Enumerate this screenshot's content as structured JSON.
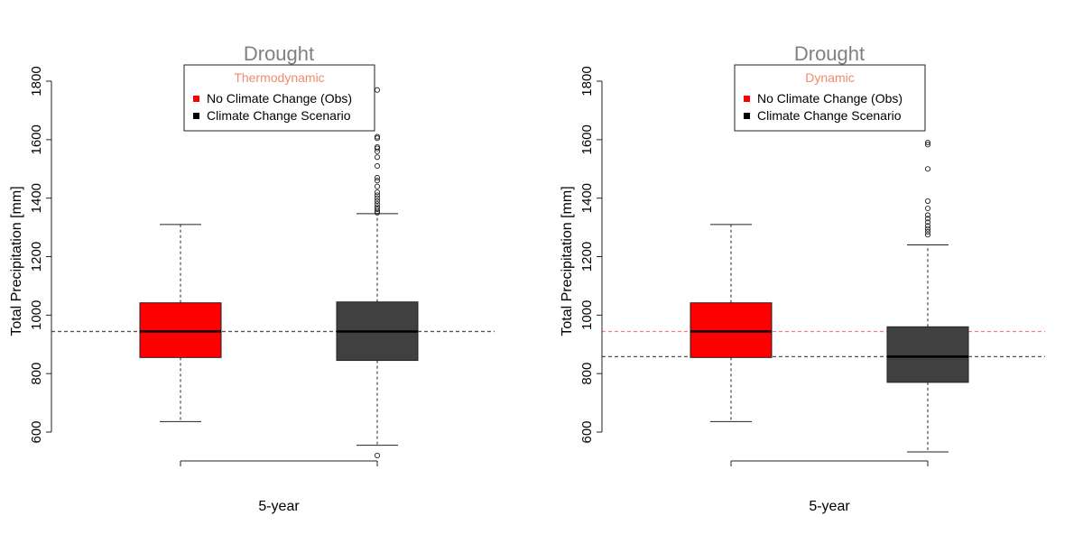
{
  "chart_data": [
    {
      "type": "box",
      "title": "Drought",
      "legend_title": "Thermodynamic",
      "legend_title_color": "#f08a6c",
      "legend_position": "top-center",
      "xlabel": "5-year",
      "ylabel": "Total Precipitation [mm]",
      "ylim": [
        580,
        1820
      ],
      "yticks": [
        600,
        800,
        1000,
        1200,
        1400,
        1600,
        1800
      ],
      "grid": false,
      "series": [
        {
          "name": "No Climate Change (Obs)",
          "color": "#ff0000",
          "min": 636,
          "q1": 855,
          "median": 944,
          "q3": 1042,
          "max": 1310,
          "outliers": []
        },
        {
          "name": "Climate Change Scenario",
          "color": "#404040",
          "min": 555,
          "q1": 845,
          "median": 944,
          "q3": 1045,
          "max": 1347,
          "outliers": [
            520,
            1350,
            1355,
            1362,
            1370,
            1380,
            1390,
            1400,
            1410,
            1420,
            1440,
            1460,
            1470,
            1510,
            1540,
            1560,
            1570,
            1575,
            1605,
            1610,
            1770
          ]
        }
      ],
      "reference_lines": [
        {
          "value": 944,
          "color": "#f08080"
        },
        {
          "value": 944,
          "color": "#555555"
        }
      ]
    },
    {
      "type": "box",
      "title": "Drought",
      "legend_title": "Dynamic",
      "legend_title_color": "#f08a6c",
      "legend_position": "top-center",
      "xlabel": "5-year",
      "ylabel": "Total Precipitation [mm]",
      "ylim": [
        580,
        1820
      ],
      "yticks": [
        600,
        800,
        1000,
        1200,
        1400,
        1600,
        1800
      ],
      "grid": false,
      "series": [
        {
          "name": "No Climate Change (Obs)",
          "color": "#ff0000",
          "min": 636,
          "q1": 855,
          "median": 944,
          "q3": 1042,
          "max": 1310,
          "outliers": []
        },
        {
          "name": "Climate Change Scenario",
          "color": "#404040",
          "min": 532,
          "q1": 770,
          "median": 858,
          "q3": 960,
          "max": 1240,
          "outliers": [
            1275,
            1285,
            1295,
            1305,
            1318,
            1330,
            1342,
            1365,
            1390,
            1500,
            1583,
            1590
          ]
        }
      ],
      "reference_lines": [
        {
          "value": 944,
          "color": "#f08080"
        },
        {
          "value": 858,
          "color": "#555555"
        }
      ]
    }
  ]
}
